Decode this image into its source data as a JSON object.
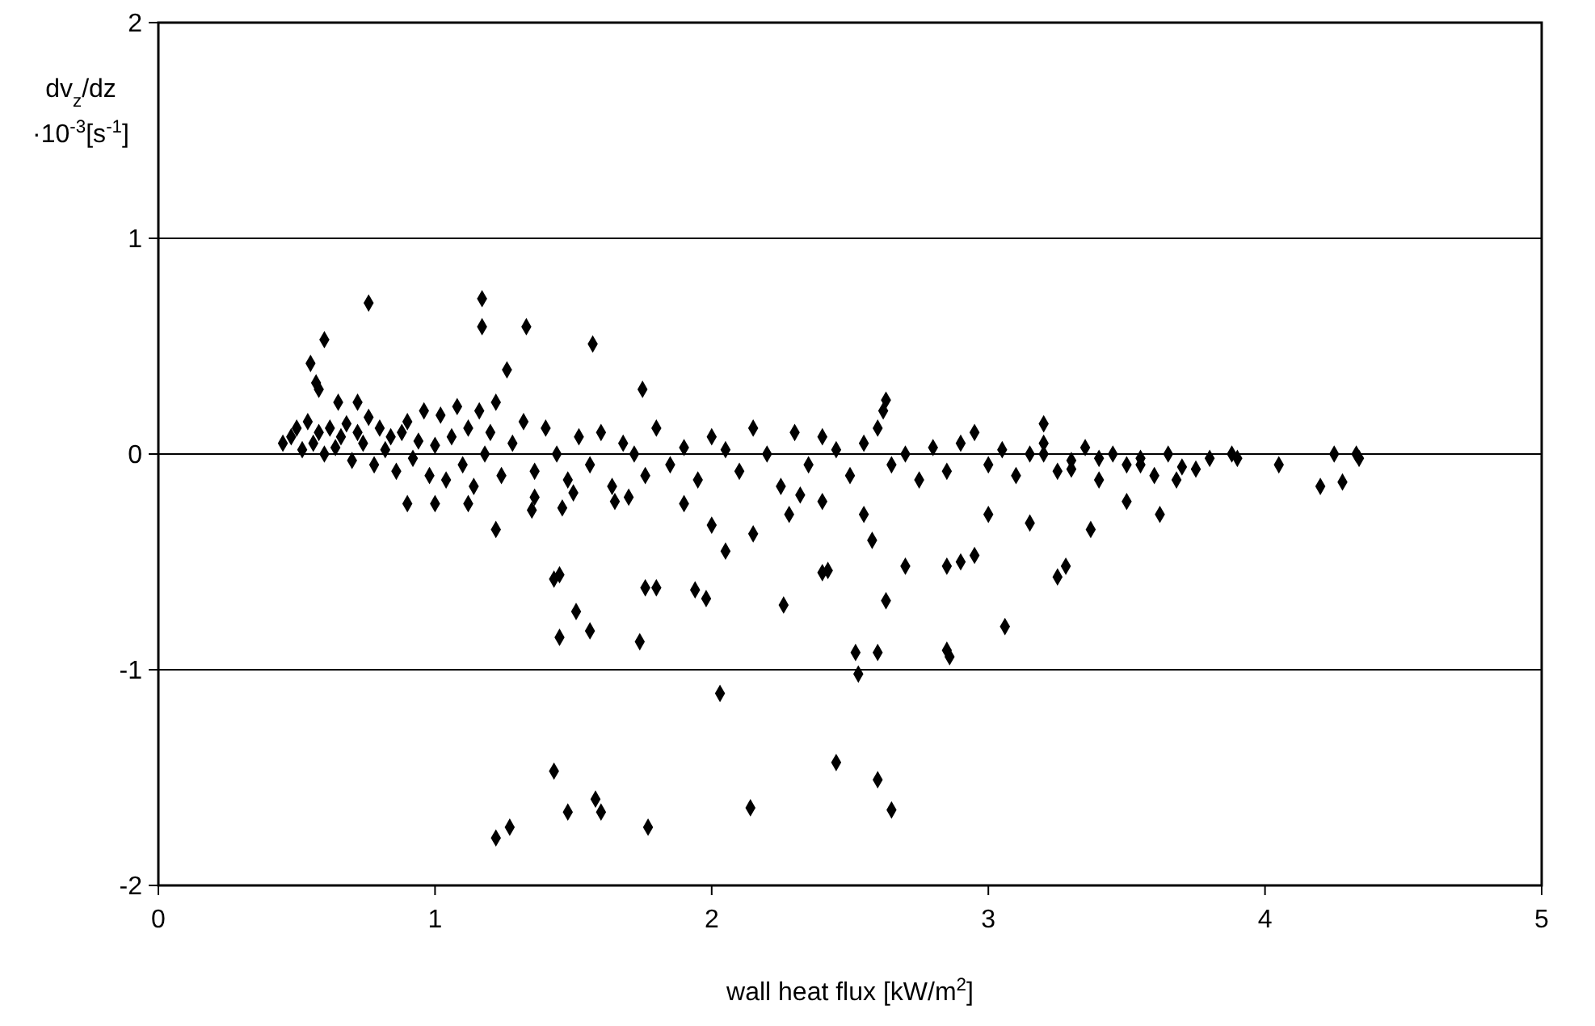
{
  "chart_data": {
    "type": "scatter",
    "xlabel": "wall heat flux [kW/m$^{2}$]",
    "ylabel": "dv$_{z}$/dz ·10$^{-3}$[s$^{-1}$]",
    "xlim": [
      0,
      5
    ],
    "ylim": [
      -2,
      2
    ],
    "xticks": [
      0,
      1,
      2,
      3,
      4,
      5
    ],
    "yticks": [
      -2,
      -1,
      0,
      1,
      2
    ],
    "grid": "y",
    "marker": "diamond",
    "series": [
      {
        "color": "#000000",
        "x": [
          0.45,
          0.48,
          0.5,
          0.52,
          0.54,
          0.56,
          0.58,
          0.6,
          0.62,
          0.64,
          0.66,
          0.68,
          0.7,
          0.72,
          0.74,
          0.76,
          0.78,
          0.8,
          0.82,
          0.84,
          0.86,
          0.88,
          0.9,
          0.92,
          0.94,
          0.96,
          0.98,
          1.0,
          1.02,
          1.04,
          1.06,
          1.08,
          1.1,
          1.12,
          1.14,
          1.16,
          1.18,
          1.2,
          1.24,
          1.28,
          1.32,
          1.36,
          1.4,
          1.44,
          1.48,
          1.52,
          1.56,
          1.6,
          1.64,
          1.68,
          1.72,
          1.76,
          1.8,
          1.85,
          1.9,
          1.95,
          2.0,
          2.05,
          2.1,
          2.15,
          2.2,
          2.25,
          2.3,
          2.35,
          2.4,
          2.45,
          2.5,
          2.55,
          2.6,
          2.65,
          2.7,
          2.75,
          2.8,
          2.85,
          2.9,
          2.95,
          3.0,
          3.05,
          3.1,
          3.15,
          3.2,
          3.25,
          3.3,
          3.35,
          3.4,
          3.45,
          3.5,
          3.55,
          3.6,
          3.65,
          3.7,
          3.8,
          0.55,
          0.6,
          0.57,
          0.58,
          0.65,
          0.72,
          0.76,
          1.17,
          1.17,
          1.33,
          1.22,
          1.26,
          1.57,
          1.75,
          2.63,
          2.62,
          3.2,
          1.43,
          1.45,
          1.45,
          1.51,
          1.56,
          1.76,
          1.8,
          1.74,
          1.94,
          1.98,
          2.03,
          2.26,
          2.4,
          2.42,
          2.52,
          2.53,
          2.6,
          2.63,
          2.85,
          2.86,
          3.06,
          2.85,
          2.9,
          2.95,
          3.25,
          3.28,
          3.37,
          2.45,
          2.6,
          2.65,
          2.14,
          1.43,
          1.48,
          1.58,
          1.6,
          1.77,
          1.22,
          1.27,
          0.9,
          1.0,
          1.22,
          1.12,
          1.35,
          1.46,
          1.36,
          1.5,
          1.65,
          1.7,
          1.9,
          2.0,
          2.05,
          2.15,
          2.28,
          2.32,
          2.55,
          2.58,
          2.7,
          2.4,
          3.0,
          3.15,
          3.5,
          3.62,
          4.2,
          4.28,
          4.34,
          4.33,
          4.25,
          3.9,
          3.88,
          4.05,
          3.75,
          3.68,
          3.55,
          3.4,
          3.3,
          3.2
        ],
        "values": [
          0.05,
          0.08,
          0.12,
          0.02,
          0.15,
          0.05,
          0.1,
          0.0,
          0.12,
          0.03,
          0.08,
          0.14,
          -0.03,
          0.1,
          0.05,
          0.17,
          -0.05,
          0.12,
          0.02,
          0.08,
          -0.08,
          0.1,
          0.15,
          -0.02,
          0.06,
          0.2,
          -0.1,
          0.04,
          0.18,
          -0.12,
          0.08,
          0.22,
          -0.05,
          0.12,
          -0.15,
          0.2,
          0.0,
          0.1,
          -0.1,
          0.05,
          0.15,
          -0.08,
          0.12,
          0.0,
          -0.12,
          0.08,
          -0.05,
          0.1,
          -0.15,
          0.05,
          0.0,
          -0.1,
          0.12,
          -0.05,
          0.03,
          -0.12,
          0.08,
          0.02,
          -0.08,
          0.12,
          0.0,
          -0.15,
          0.1,
          -0.05,
          0.08,
          0.02,
          -0.1,
          0.05,
          0.12,
          -0.05,
          0.0,
          -0.12,
          0.03,
          -0.08,
          0.05,
          0.1,
          -0.05,
          0.02,
          -0.1,
          0.0,
          0.05,
          -0.08,
          -0.03,
          0.03,
          -0.12,
          0.0,
          -0.05,
          -0.02,
          -0.1,
          0.0,
          -0.06,
          -0.02,
          0.42,
          0.53,
          0.33,
          0.3,
          0.24,
          0.24,
          0.7,
          0.72,
          0.59,
          0.59,
          0.24,
          0.39,
          0.51,
          0.3,
          0.25,
          0.2,
          0.14,
          -0.58,
          -0.56,
          -0.85,
          -0.73,
          -0.82,
          -0.62,
          -0.62,
          -0.87,
          -0.63,
          -0.67,
          -1.11,
          -0.7,
          -0.55,
          -0.54,
          -0.92,
          -1.02,
          -0.92,
          -0.68,
          -0.91,
          -0.94,
          -0.8,
          -0.52,
          -0.5,
          -0.47,
          -0.57,
          -0.52,
          -0.35,
          -1.43,
          -1.51,
          -1.65,
          -1.64,
          -1.47,
          -1.66,
          -1.6,
          -1.66,
          -1.73,
          -1.78,
          -1.73,
          -0.23,
          -0.23,
          -0.35,
          -0.23,
          -0.26,
          -0.25,
          -0.2,
          -0.18,
          -0.22,
          -0.2,
          -0.23,
          -0.33,
          -0.45,
          -0.37,
          -0.28,
          -0.19,
          -0.28,
          -0.4,
          -0.52,
          -0.22,
          -0.28,
          -0.32,
          -0.22,
          -0.28,
          -0.15,
          -0.13,
          -0.02,
          0.0,
          0.0,
          -0.02,
          0.0,
          -0.05,
          -0.07,
          -0.12,
          -0.05,
          -0.02,
          -0.07,
          0.0
        ]
      }
    ]
  }
}
